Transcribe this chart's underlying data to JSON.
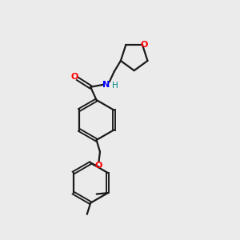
{
  "background_color": "#ebebeb",
  "bond_color": "#1a1a1a",
  "atom_colors": {
    "O": "#ff0000",
    "N": "#0000ff",
    "H": "#008888",
    "C": "#1a1a1a"
  },
  "figsize": [
    3.0,
    3.0
  ],
  "dpi": 100,
  "lw": 1.6
}
